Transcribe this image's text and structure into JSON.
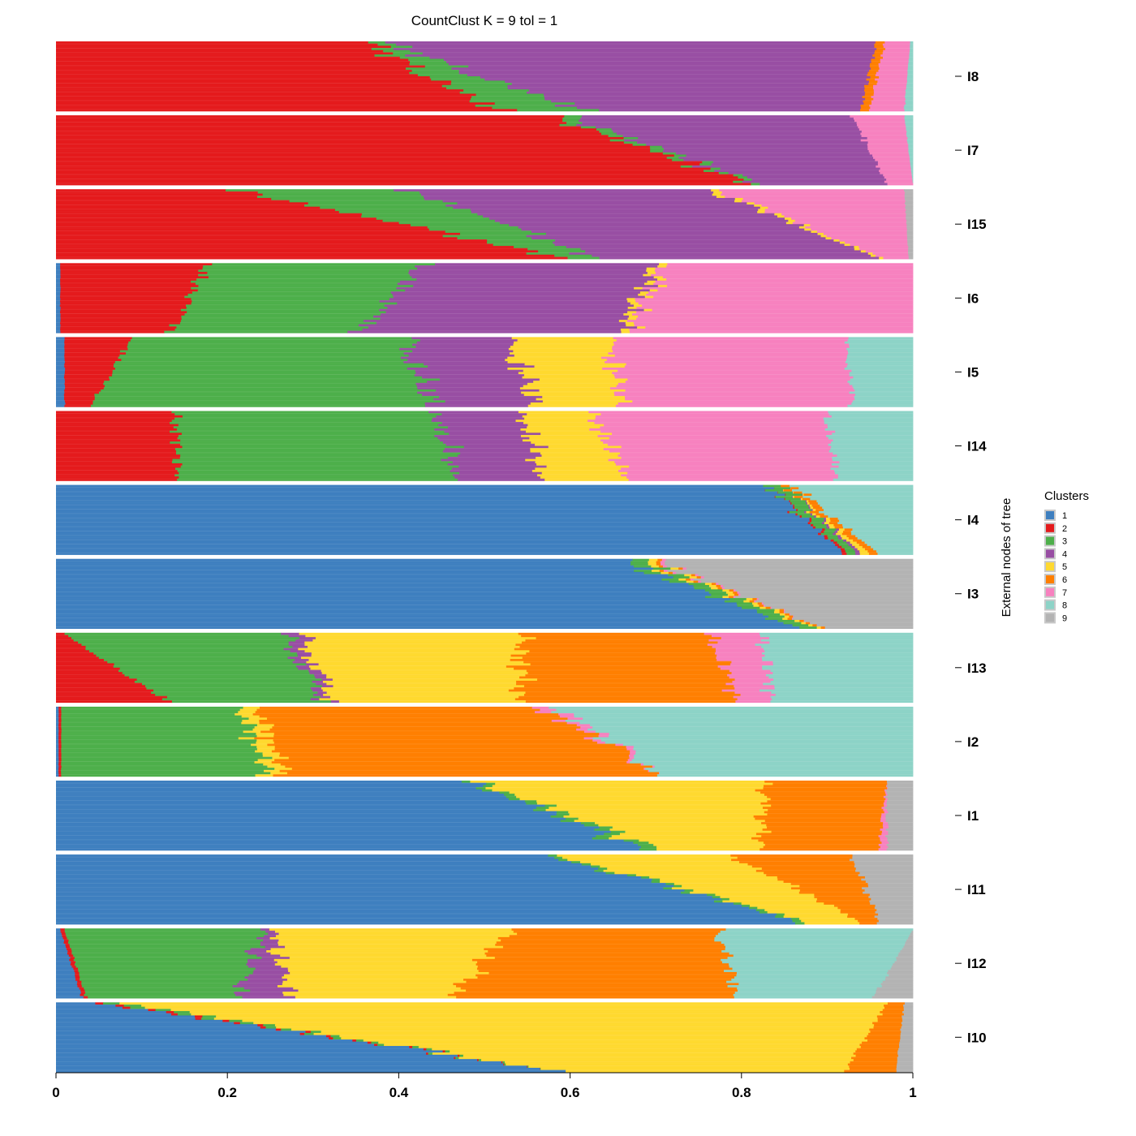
{
  "chart_data": {
    "type": "bar",
    "orientation": "horizontal-stacked",
    "title": "CountClust K =  9 tol =  1",
    "ylabel": "External nodes of tree",
    "xlim": [
      0,
      1
    ],
    "x_ticks": [
      "0",
      "0.2",
      "0.4",
      "0.6",
      "0.8",
      "1"
    ],
    "grid": false,
    "legend": {
      "title": "Clusters",
      "position": "right",
      "items": [
        {
          "label": "1",
          "color": "#3E7FBF"
        },
        {
          "label": "2",
          "color": "#E41A1C"
        },
        {
          "label": "3",
          "color": "#4DAF4A"
        },
        {
          "label": "4",
          "color": "#984EA3"
        },
        {
          "label": "5",
          "color": "#FFD92F"
        },
        {
          "label": "6",
          "color": "#FF7F00"
        },
        {
          "label": "7",
          "color": "#F781BF"
        },
        {
          "label": "8",
          "color": "#8DD3C7"
        },
        {
          "label": "9",
          "color": "#B3B3B3"
        }
      ]
    },
    "groups": [
      {
        "label": "I8",
        "start": [
          0,
          0.36,
          0.02,
          0.58,
          0,
          0.01,
          0.03,
          0.003,
          0
        ],
        "end": [
          0,
          0.52,
          0.1,
          0.32,
          0,
          0.01,
          0.04,
          0.01,
          0
        ]
      },
      {
        "label": "I7",
        "start": [
          0,
          0.58,
          0.02,
          0.33,
          0,
          0,
          0.06,
          0.01,
          0
        ],
        "end": [
          0,
          0.81,
          0.01,
          0.15,
          0,
          0,
          0.03,
          0,
          0
        ]
      },
      {
        "label": "I15",
        "start": [
          0,
          0.21,
          0.2,
          0.35,
          0.01,
          0,
          0.22,
          0,
          0.01
        ],
        "end": [
          0,
          0.59,
          0.04,
          0.33,
          0.005,
          0,
          0.03,
          0,
          0.005
        ]
      },
      {
        "label": "I6",
        "start": [
          0.005,
          0.17,
          0.25,
          0.27,
          0.01,
          0,
          0.295,
          0,
          0
        ],
        "end": [
          0.005,
          0.13,
          0.22,
          0.31,
          0.01,
          0,
          0.325,
          0,
          0
        ]
      },
      {
        "label": "I5",
        "start": [
          0.01,
          0.08,
          0.32,
          0.12,
          0.12,
          0,
          0.27,
          0.08,
          0
        ],
        "end": [
          0.01,
          0.03,
          0.4,
          0.12,
          0.1,
          0,
          0.27,
          0.07,
          0
        ]
      },
      {
        "label": "I14",
        "start": [
          0,
          0.14,
          0.31,
          0.1,
          0.08,
          0,
          0.27,
          0.1,
          0
        ],
        "end": [
          0,
          0.14,
          0.32,
          0.1,
          0.1,
          0,
          0.25,
          0.09,
          0
        ]
      },
      {
        "label": "I4",
        "start": [
          0.83,
          0,
          0.02,
          0,
          0,
          0.01,
          0,
          0.14,
          0
        ],
        "end": [
          0.92,
          0.005,
          0.01,
          0.005,
          0.01,
          0.01,
          0,
          0.04,
          0
        ]
      },
      {
        "label": "I3",
        "start": [
          0.66,
          0,
          0.02,
          0,
          0.01,
          0.005,
          0.005,
          0,
          0.3
        ],
        "end": [
          0.86,
          0,
          0.02,
          0,
          0.005,
          0.005,
          0,
          0,
          0.11
        ]
      },
      {
        "label": "I13",
        "start": [
          0,
          0.01,
          0.26,
          0.02,
          0.26,
          0.22,
          0.06,
          0.17,
          0
        ],
        "end": [
          0,
          0.13,
          0.18,
          0.01,
          0.22,
          0.25,
          0.04,
          0.17,
          0
        ]
      },
      {
        "label": "I2",
        "start": [
          0.003,
          0.003,
          0.21,
          0,
          0.02,
          0.33,
          0.02,
          0.414,
          0
        ],
        "end": [
          0.003,
          0.003,
          0.24,
          0,
          0.02,
          0.44,
          0,
          0.294,
          0
        ]
      },
      {
        "label": "I1",
        "start": [
          0.49,
          0,
          0.01,
          0,
          0.33,
          0.14,
          0,
          0,
          0.03
        ],
        "end": [
          0.68,
          0,
          0.02,
          0,
          0.12,
          0.14,
          0.01,
          0,
          0.03
        ]
      },
      {
        "label": "I11",
        "start": [
          0.58,
          0,
          0.01,
          0,
          0.2,
          0.14,
          0,
          0,
          0.07
        ],
        "end": [
          0.87,
          0,
          0.01,
          0,
          0.06,
          0.02,
          0,
          0,
          0.04
        ]
      },
      {
        "label": "I12",
        "start": [
          0.005,
          0.005,
          0.23,
          0.01,
          0.28,
          0.24,
          0,
          0.23,
          0
        ],
        "end": [
          0.03,
          0.005,
          0.18,
          0.06,
          0.19,
          0.33,
          0,
          0.16,
          0.045
        ]
      },
      {
        "label": "I10",
        "start": [
          0.05,
          0.01,
          0.02,
          0,
          0.89,
          0.02,
          0,
          0,
          0.01
        ],
        "end": [
          0.59,
          0,
          0,
          0,
          0.33,
          0.06,
          0,
          0,
          0.02
        ]
      }
    ]
  }
}
